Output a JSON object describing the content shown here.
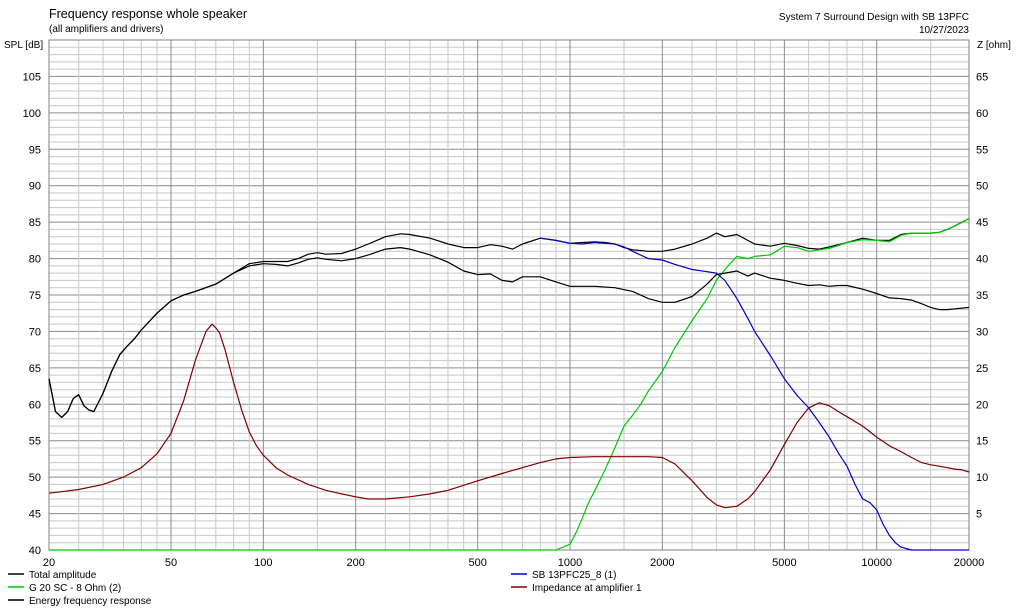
{
  "chart_data": {
    "type": "line",
    "title": "Frequency response whole speaker",
    "subtitle": "(all amplifiers and drivers)",
    "project": "System 7 Surround Design with SB 13PFC",
    "date": "10/27/2023",
    "ylabel": "SPL [dB]",
    "y2label": "Z [ohm]",
    "x_scale": "log",
    "xlim": [
      20,
      20000
    ],
    "ylim": [
      40,
      110
    ],
    "y2lim": [
      0,
      70
    ],
    "grid": true,
    "x_ticks": [
      20,
      50,
      100,
      200,
      500,
      1000,
      2000,
      5000,
      10000,
      20000
    ],
    "x_tick_labels": [
      "20",
      "50",
      "100",
      "200",
      "500",
      "1000",
      "2000",
      "5000",
      "10000",
      "20000"
    ],
    "y_ticks": [
      40,
      45,
      50,
      55,
      60,
      65,
      70,
      75,
      80,
      85,
      90,
      95,
      100,
      105
    ],
    "y_tick_labels": [
      "40",
      "45",
      "50",
      "55",
      "60",
      "65",
      "70",
      "75",
      "80",
      "85",
      "90",
      "95",
      "100",
      "105"
    ],
    "y2_ticks": [
      5,
      10,
      15,
      20,
      25,
      30,
      35,
      40,
      45,
      50,
      55,
      60,
      65
    ],
    "y2_tick_labels": [
      "5",
      "10",
      "15",
      "20",
      "25",
      "30",
      "35",
      "40",
      "45",
      "50",
      "55",
      "60",
      "65"
    ],
    "series": [
      {
        "name": "Total amplitude",
        "color": "#000000",
        "axis": "left",
        "x": [
          20,
          21,
          22,
          23,
          24,
          25,
          26,
          27,
          28,
          30,
          32,
          34,
          36,
          38,
          40,
          45,
          50,
          55,
          60,
          70,
          80,
          90,
          100,
          110,
          120,
          130,
          140,
          150,
          160,
          180,
          200,
          220,
          250,
          280,
          300,
          350,
          400,
          450,
          500,
          550,
          600,
          650,
          700,
          800,
          900,
          1000,
          1100,
          1200,
          1300,
          1400,
          1500,
          1600,
          1800,
          2000,
          2200,
          2500,
          2800,
          3000,
          3200,
          3500,
          3800,
          4000,
          4500,
          5000,
          5500,
          6000,
          6500,
          7000,
          7500,
          8000,
          9000,
          10000,
          11000,
          12000,
          13000,
          14000,
          15000,
          16000,
          17000,
          18000,
          19000,
          20000
        ],
        "y": [
          63.5,
          59,
          58.2,
          59,
          60.8,
          61.3,
          59.8,
          59.2,
          59.0,
          61.5,
          64.5,
          66.8,
          68,
          69,
          70.2,
          72.5,
          74.2,
          75,
          75.5,
          76.5,
          78,
          79.3,
          79.6,
          79.6,
          79.6,
          80.0,
          80.6,
          80.8,
          80.6,
          80.7,
          81.3,
          82.0,
          83,
          83.4,
          83.3,
          82.8,
          82.0,
          81.5,
          81.5,
          81.9,
          81.7,
          81.3,
          82.0,
          82.8,
          82.5,
          82.1,
          82.2,
          82.3,
          82.2,
          82.0,
          81.5,
          81.2,
          81.0,
          81.0,
          81.3,
          82.0,
          82.8,
          83.5,
          83.0,
          83.3,
          82.5,
          82.0,
          81.7,
          82.1,
          81.8,
          81.4,
          81.3,
          81.6,
          81.9,
          82.2,
          82.8,
          82.5,
          82.5,
          83.3,
          83.5,
          83.5,
          83.5,
          83.6,
          84.0,
          84.5,
          85.0,
          85.5
        ]
      },
      {
        "name": "G 20 SC - 8 Ohm (2)",
        "color": "#00c800",
        "axis": "left",
        "x": [
          20,
          100,
          500,
          900,
          1000,
          1050,
          1100,
          1150,
          1200,
          1300,
          1400,
          1500,
          1600,
          1700,
          1800,
          2000,
          2200,
          2500,
          2800,
          3000,
          3200,
          3500,
          3800,
          4000,
          4500,
          5000,
          5500,
          6000,
          6500,
          7000,
          7500,
          8000,
          9000,
          10000,
          11000,
          12000,
          13000,
          14000,
          15000,
          16000,
          17000,
          18000,
          19000,
          20000
        ],
        "y": [
          40,
          40,
          40,
          40,
          40.8,
          42.5,
          44.5,
          46.5,
          48,
          51,
          54,
          57,
          58.5,
          60,
          61.8,
          64.5,
          67.8,
          71.5,
          74.5,
          77,
          78.5,
          80.3,
          80,
          80.3,
          80.5,
          81.7,
          81.5,
          81,
          81.2,
          81.4,
          81.8,
          82.2,
          82.6,
          82.5,
          82.3,
          83.2,
          83.5,
          83.5,
          83.5,
          83.6,
          84.0,
          84.5,
          85.0,
          85.5
        ]
      },
      {
        "name": "Energy frequency response",
        "color": "#000000",
        "axis": "left",
        "x": [
          20,
          21,
          22,
          23,
          24,
          25,
          26,
          27,
          28,
          30,
          32,
          34,
          36,
          38,
          40,
          45,
          50,
          55,
          60,
          70,
          80,
          90,
          100,
          110,
          120,
          130,
          140,
          150,
          160,
          180,
          200,
          220,
          250,
          280,
          300,
          350,
          400,
          450,
          500,
          550,
          600,
          650,
          700,
          800,
          900,
          1000,
          1200,
          1400,
          1600,
          1800,
          2000,
          2200,
          2500,
          2800,
          3000,
          3200,
          3500,
          3800,
          4000,
          4500,
          5000,
          5500,
          6000,
          6500,
          7000,
          7500,
          8000,
          9000,
          10000,
          11000,
          12000,
          13000,
          14000,
          15000,
          16000,
          17000,
          18000,
          19000,
          20000
        ],
        "y": [
          63.5,
          59,
          58.2,
          59,
          60.8,
          61.3,
          59.8,
          59.2,
          59.0,
          61.5,
          64.5,
          66.8,
          68,
          69,
          70.2,
          72.5,
          74.2,
          75,
          75.5,
          76.5,
          78,
          79.0,
          79.3,
          79.2,
          79.0,
          79.4,
          79.9,
          80.1,
          79.9,
          79.7,
          80.0,
          80.5,
          81.3,
          81.5,
          81.3,
          80.5,
          79.5,
          78.3,
          77.8,
          77.9,
          77.0,
          76.8,
          77.5,
          77.5,
          76.8,
          76.2,
          76.2,
          76.0,
          75.5,
          74.5,
          74.0,
          74.0,
          74.8,
          76.5,
          77.8,
          78.0,
          78.3,
          77.6,
          78.0,
          77.3,
          77.0,
          76.6,
          76.3,
          76.4,
          76.2,
          76.3,
          76.3,
          75.8,
          75.2,
          74.6,
          74.5,
          74.3,
          73.8,
          73.3,
          73.0,
          73.0,
          73.1,
          73.2,
          73.3
        ]
      },
      {
        "name": "SB 13PFC25_8 (1)",
        "color": "#0000c8",
        "axis": "left",
        "x": [
          800,
          900,
          1000,
          1100,
          1200,
          1300,
          1400,
          1500,
          1600,
          1800,
          2000,
          2200,
          2500,
          2800,
          3000,
          3200,
          3500,
          3800,
          4000,
          4500,
          5000,
          5500,
          6000,
          6500,
          7000,
          7500,
          8000,
          8500,
          9000,
          9500,
          10000,
          10500,
          11000,
          11500,
          12000,
          13000,
          14000,
          15000,
          20000
        ],
        "y": [
          82.8,
          82.5,
          82.1,
          82.0,
          82.2,
          82.1,
          82.0,
          81.6,
          81.0,
          80.0,
          79.8,
          79.2,
          78.5,
          78.2,
          78.0,
          77.0,
          74.5,
          71.8,
          70.0,
          66.7,
          63.5,
          61.2,
          59.5,
          57.5,
          55.5,
          53.3,
          51.5,
          49.0,
          47.0,
          46.5,
          45.5,
          43.5,
          42.0,
          41.0,
          40.4,
          40,
          40,
          40,
          40
        ]
      },
      {
        "name": "Impedance at amplifier 1",
        "color": "#800000",
        "axis": "right",
        "x": [
          20,
          22,
          25,
          30,
          35,
          40,
          45,
          50,
          55,
          60,
          65,
          68,
          70,
          72,
          75,
          80,
          85,
          90,
          95,
          100,
          110,
          120,
          140,
          160,
          180,
          200,
          220,
          250,
          300,
          350,
          400,
          500,
          600,
          700,
          800,
          900,
          1000,
          1200,
          1400,
          1600,
          1800,
          2000,
          2200,
          2500,
          2800,
          3000,
          3200,
          3500,
          3800,
          4000,
          4500,
          5000,
          5500,
          6000,
          6500,
          7000,
          7500,
          8000,
          9000,
          10000,
          11000,
          12000,
          13000,
          14000,
          15000,
          16000,
          17000,
          18000,
          19000,
          20000
        ],
        "y": [
          7.8,
          8,
          8.3,
          9,
          10,
          11.3,
          13.2,
          16,
          20.5,
          26,
          30,
          31,
          30.5,
          29.8,
          27.5,
          23,
          19.2,
          16.2,
          14.3,
          13,
          11.3,
          10.3,
          9,
          8.2,
          7.7,
          7.3,
          7.0,
          7.0,
          7.3,
          7.7,
          8.2,
          9.5,
          10.5,
          11.3,
          12,
          12.5,
          12.7,
          12.8,
          12.8,
          12.8,
          12.8,
          12.7,
          11.8,
          9.5,
          7.2,
          6.2,
          5.8,
          6.0,
          7.0,
          8.0,
          11.0,
          14.5,
          17.5,
          19.5,
          20.2,
          19.8,
          19.0,
          18.3,
          17.0,
          15.5,
          14.3,
          13.5,
          12.7,
          12.0,
          11.7,
          11.5,
          11.3,
          11.1,
          11.0,
          10.7
        ]
      }
    ]
  }
}
